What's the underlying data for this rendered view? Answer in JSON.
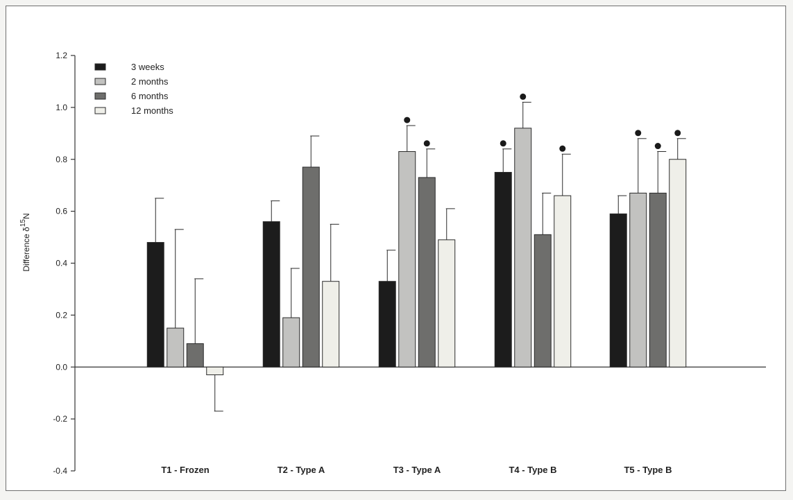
{
  "chart_data": {
    "type": "bar",
    "title": "",
    "xlabel": "",
    "ylabel": "Difference δ",
    "ylabel_superscript": "15",
    "ylabel_suffix": "N",
    "ylim": [
      -0.4,
      1.2
    ],
    "yticks": [
      "-0.4",
      "-0.2",
      "0.0",
      "0.2",
      "0.4",
      "0.6",
      "0.8",
      "1.0",
      "1.2"
    ],
    "ytick_values": [
      -0.4,
      -0.2,
      0.0,
      0.2,
      0.4,
      0.6,
      0.8,
      1.0,
      1.2
    ],
    "categories": [
      "T1 - Frozen",
      "T2 - Type A",
      "T3 - Type A",
      "T4 - Type B",
      "T5 - Type B"
    ],
    "legend_position": "top-left",
    "grid": false,
    "series": [
      {
        "name": "3 weeks",
        "color": "#1c1c1c",
        "values": [
          0.48,
          0.56,
          0.33,
          0.75,
          0.59
        ],
        "errors": [
          0.17,
          0.08,
          0.12,
          0.09,
          0.07
        ],
        "significant": [
          false,
          false,
          false,
          true,
          false
        ]
      },
      {
        "name": "2 months",
        "color": "#c2c2c0",
        "values": [
          0.15,
          0.19,
          0.83,
          0.92,
          0.67
        ],
        "errors": [
          0.38,
          0.19,
          0.1,
          0.1,
          0.21
        ],
        "significant": [
          false,
          false,
          true,
          true,
          true
        ]
      },
      {
        "name": "6 months",
        "color": "#6e6e6c",
        "values": [
          0.09,
          0.77,
          0.73,
          0.51,
          0.67
        ],
        "errors": [
          0.25,
          0.12,
          0.11,
          0.16,
          0.16
        ],
        "significant": [
          false,
          false,
          true,
          false,
          true
        ]
      },
      {
        "name": "12 months",
        "color": "#efefe9",
        "values": [
          -0.03,
          0.33,
          0.49,
          0.66,
          0.8
        ],
        "errors": [
          0.14,
          0.22,
          0.12,
          0.16,
          0.08
        ],
        "significant": [
          false,
          false,
          false,
          true,
          true
        ]
      }
    ]
  }
}
